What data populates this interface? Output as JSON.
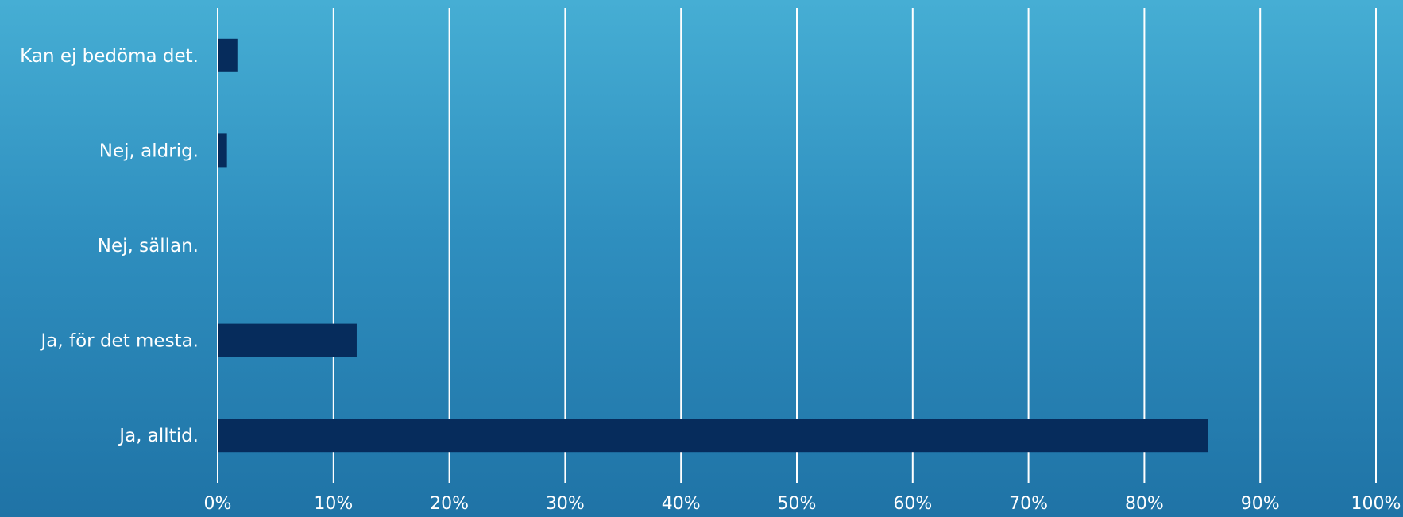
{
  "chart_data": {
    "type": "bar",
    "orientation": "horizontal",
    "categories": [
      "Kan ej bedöma det.",
      "Nej, aldrig.",
      "Nej, sällan.",
      "Ja, för det mesta.",
      "Ja, alltid."
    ],
    "values": [
      1.7,
      0.8,
      0,
      12,
      85.5
    ],
    "xlim": [
      0,
      100
    ],
    "x_ticks": [
      "0%",
      "10%",
      "20%",
      "30%",
      "40%",
      "50%",
      "60%",
      "70%",
      "80%",
      "90%",
      "100%"
    ],
    "grid": true,
    "legend": "none",
    "colors": {
      "bar": "#062c5c",
      "grid": "#ffffff",
      "text": "#ffffff",
      "background_top": "#46aed4",
      "background_bottom": "#1f73a6"
    }
  }
}
